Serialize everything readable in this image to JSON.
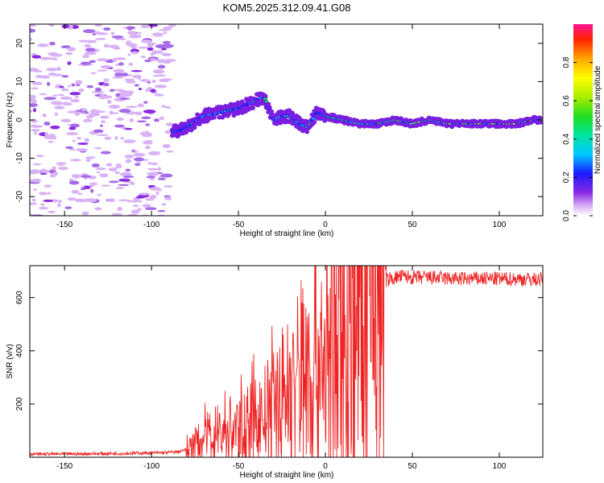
{
  "title": "KOM5.2025.312.09.41.G08",
  "chart_data": [
    {
      "type": "heatmap",
      "xlabel": "Height of straight line (km)",
      "ylabel": "Frequency (Hz)",
      "xlim": [
        -170,
        125
      ],
      "ylim": [
        -25,
        25
      ],
      "xticks": [
        -150,
        -100,
        -50,
        0,
        50,
        100
      ],
      "yticks": [
        -20,
        -10,
        0,
        10,
        20
      ],
      "ridge": {
        "x": [
          -85,
          -80,
          -70,
          -60,
          -50,
          -45,
          -40,
          -35,
          -30,
          -25,
          -20,
          -15,
          -10,
          -5,
          0,
          10,
          20,
          30,
          40,
          50,
          60,
          70,
          80,
          90,
          100,
          110,
          120,
          125
        ],
        "y": [
          -3,
          -2,
          1,
          2,
          3,
          4,
          5,
          6,
          0,
          1,
          1,
          -1,
          -2,
          2,
          1,
          0,
          -1,
          -1,
          0,
          -1,
          0,
          -1,
          -1,
          -1,
          -1,
          -1,
          0,
          0
        ]
      },
      "noise_region_x": [
        -170,
        -88
      ],
      "colorbar": {
        "label": "Normalized spectral amplitude",
        "range": [
          0,
          1
        ],
        "ticks": [
          0.0,
          0.2,
          0.4,
          0.6,
          0.8
        ]
      }
    },
    {
      "type": "line",
      "xlabel": "Height of straight line (km)",
      "ylabel": "SNR (v/v)",
      "xlim": [
        -170,
        125
      ],
      "ylim": [
        0,
        720
      ],
      "xticks": [
        -150,
        -100,
        -50,
        0,
        50,
        100
      ],
      "yticks": [
        200,
        400,
        600
      ],
      "series": [
        {
          "name": "SNR",
          "color": "#ee2222",
          "x": [
            -170,
            -150,
            -120,
            -100,
            -90,
            -85,
            -80,
            -75,
            -70,
            -65,
            -60,
            -55,
            -50,
            -45,
            -40,
            -35,
            -30,
            -25,
            -20,
            -15,
            -10,
            -5,
            0,
            5,
            10,
            15,
            20,
            25,
            30,
            35,
            40,
            45,
            50,
            60,
            70,
            80,
            90,
            100,
            110,
            120,
            125
          ],
          "y": [
            12,
            12,
            14,
            16,
            18,
            20,
            28,
            50,
            70,
            90,
            95,
            100,
            110,
            120,
            140,
            160,
            190,
            230,
            260,
            300,
            340,
            360,
            380,
            420,
            470,
            520,
            560,
            600,
            640,
            665,
            675,
            680,
            675,
            675,
            672,
            670,
            672,
            670,
            670,
            668,
            670
          ]
        }
      ]
    }
  ]
}
